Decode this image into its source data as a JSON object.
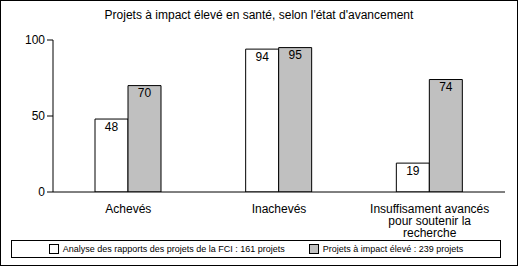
{
  "chart_data": {
    "type": "bar",
    "title": "Projets à impact élevé en santé, selon l'état d'avancement",
    "categories": [
      "Achevés",
      "Inachevés",
      "Insuffisament avancés pour soutenir la recherche"
    ],
    "series": [
      {
        "name": "Analyse des rapports des projets de la FCI : 161 projets",
        "color": "#ffffff",
        "values": [
          48,
          94,
          19
        ]
      },
      {
        "name": "Projets à impact élevé : 239 projets",
        "color": "#c0c0c0",
        "values": [
          70,
          95,
          74
        ]
      }
    ],
    "ylim": [
      0,
      100
    ],
    "yticks": [
      0,
      50,
      100
    ],
    "grid": false,
    "data_labels": true,
    "legend": "bottom"
  }
}
